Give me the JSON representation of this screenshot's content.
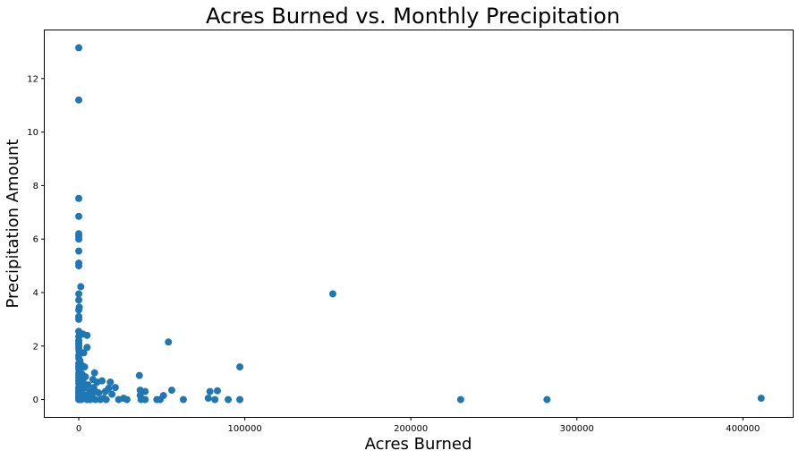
{
  "chart_data": {
    "type": "scatter",
    "title": "Acres Burned vs. Monthly Precipitation",
    "xlabel": "Acres Burned",
    "ylabel": "Precipitation Amount",
    "xlim": [
      -20500,
      430000
    ],
    "ylim": [
      -0.65,
      13.8
    ],
    "xticks": [
      0,
      100000,
      200000,
      300000,
      400000
    ],
    "yticks": [
      0,
      2,
      4,
      6,
      8,
      10,
      12
    ],
    "grid": false,
    "legend": "none",
    "marker_color": "#1f77b4",
    "points": [
      {
        "x": 0,
        "y": 13.15
      },
      {
        "x": 0,
        "y": 11.2
      },
      {
        "x": 0,
        "y": 7.52
      },
      {
        "x": 0,
        "y": 6.85
      },
      {
        "x": 0,
        "y": 6.2
      },
      {
        "x": 0,
        "y": 6.1
      },
      {
        "x": 0,
        "y": 6.0
      },
      {
        "x": 0,
        "y": 5.55
      },
      {
        "x": 0,
        "y": 5.1
      },
      {
        "x": 0,
        "y": 5.0
      },
      {
        "x": 1200,
        "y": 4.22
      },
      {
        "x": 0,
        "y": 3.95
      },
      {
        "x": 0,
        "y": 3.72
      },
      {
        "x": 300,
        "y": 3.45
      },
      {
        "x": 0,
        "y": 3.35
      },
      {
        "x": 0,
        "y": 3.1
      },
      {
        "x": 0,
        "y": 3.0
      },
      {
        "x": 0,
        "y": 2.55
      },
      {
        "x": 500,
        "y": 2.45
      },
      {
        "x": 0,
        "y": 2.35
      },
      {
        "x": 2500,
        "y": 2.45
      },
      {
        "x": 0,
        "y": 2.2
      },
      {
        "x": 0,
        "y": 2.1
      },
      {
        "x": 0,
        "y": 2.0
      },
      {
        "x": 0,
        "y": 1.9
      },
      {
        "x": 200,
        "y": 1.8
      },
      {
        "x": 3000,
        "y": 1.75
      },
      {
        "x": 0,
        "y": 1.65
      },
      {
        "x": 0,
        "y": 1.55
      },
      {
        "x": 700,
        "y": 1.45
      },
      {
        "x": 0,
        "y": 1.35
      },
      {
        "x": 1500,
        "y": 1.3
      },
      {
        "x": 0,
        "y": 1.25
      },
      {
        "x": 3500,
        "y": 1.22
      },
      {
        "x": 0,
        "y": 1.15
      },
      {
        "x": 800,
        "y": 1.05
      },
      {
        "x": 0,
        "y": 1.0
      },
      {
        "x": 2000,
        "y": 0.95
      },
      {
        "x": 0,
        "y": 0.9
      },
      {
        "x": 4000,
        "y": 0.85
      },
      {
        "x": 0,
        "y": 0.8
      },
      {
        "x": 1000,
        "y": 0.75
      },
      {
        "x": 0,
        "y": 0.7
      },
      {
        "x": 2500,
        "y": 0.65
      },
      {
        "x": 0,
        "y": 0.6
      },
      {
        "x": 5500,
        "y": 0.55
      },
      {
        "x": 400,
        "y": 0.5
      },
      {
        "x": 0,
        "y": 0.45
      },
      {
        "x": 3000,
        "y": 0.42
      },
      {
        "x": 0,
        "y": 0.38
      },
      {
        "x": 1800,
        "y": 0.35
      },
      {
        "x": 0,
        "y": 0.3
      },
      {
        "x": 6500,
        "y": 0.3
      },
      {
        "x": 0,
        "y": 0.25
      },
      {
        "x": 2200,
        "y": 0.22
      },
      {
        "x": 0,
        "y": 0.18
      },
      {
        "x": 4500,
        "y": 0.15
      },
      {
        "x": 0,
        "y": 0.12
      },
      {
        "x": 1200,
        "y": 0.1
      },
      {
        "x": 0,
        "y": 0.06
      },
      {
        "x": 3300,
        "y": 0.04
      },
      {
        "x": 0,
        "y": 0.02
      },
      {
        "x": 0,
        "y": 0.0
      },
      {
        "x": 1500,
        "y": 0.0
      },
      {
        "x": 5000,
        "y": 0.0
      },
      {
        "x": 2600,
        "y": 0.08
      },
      {
        "x": 5000,
        "y": 2.4
      },
      {
        "x": 5000,
        "y": 1.95
      },
      {
        "x": 9500,
        "y": 1.0
      },
      {
        "x": 8500,
        "y": 0.75
      },
      {
        "x": 11000,
        "y": 0.65
      },
      {
        "x": 14000,
        "y": 0.7
      },
      {
        "x": 9000,
        "y": 0.45
      },
      {
        "x": 10000,
        "y": 0.3
      },
      {
        "x": 12000,
        "y": 0.25
      },
      {
        "x": 16000,
        "y": 0.3
      },
      {
        "x": 18000,
        "y": 0.42
      },
      {
        "x": 19000,
        "y": 0.65
      },
      {
        "x": 20000,
        "y": 0.2
      },
      {
        "x": 22000,
        "y": 0.45
      },
      {
        "x": 8000,
        "y": 0.1
      },
      {
        "x": 10000,
        "y": 0.0
      },
      {
        "x": 13000,
        "y": 0.0
      },
      {
        "x": 15000,
        "y": 0.05
      },
      {
        "x": 16500,
        "y": 0.0
      },
      {
        "x": 24000,
        "y": 0.0
      },
      {
        "x": 27000,
        "y": 0.05
      },
      {
        "x": 29000,
        "y": 0.0
      },
      {
        "x": 7000,
        "y": 0.0
      },
      {
        "x": 36500,
        "y": 0.9
      },
      {
        "x": 37000,
        "y": 0.35
      },
      {
        "x": 40000,
        "y": 0.3
      },
      {
        "x": 37000,
        "y": 0.15
      },
      {
        "x": 37500,
        "y": 0.0
      },
      {
        "x": 40000,
        "y": 0.0
      },
      {
        "x": 47000,
        "y": 0.0
      },
      {
        "x": 49000,
        "y": 0.0
      },
      {
        "x": 51000,
        "y": 0.15
      },
      {
        "x": 54000,
        "y": 2.15
      },
      {
        "x": 56000,
        "y": 0.35
      },
      {
        "x": 63000,
        "y": 0.0
      },
      {
        "x": 78000,
        "y": 0.05
      },
      {
        "x": 79000,
        "y": 0.3
      },
      {
        "x": 82000,
        "y": 0.0
      },
      {
        "x": 83500,
        "y": 0.33
      },
      {
        "x": 90000,
        "y": 0.0
      },
      {
        "x": 97000,
        "y": 1.22
      },
      {
        "x": 97000,
        "y": 0.0
      },
      {
        "x": 153000,
        "y": 3.95
      },
      {
        "x": 230000,
        "y": 0.0
      },
      {
        "x": 282000,
        "y": 0.0
      },
      {
        "x": 411000,
        "y": 0.05
      }
    ]
  }
}
